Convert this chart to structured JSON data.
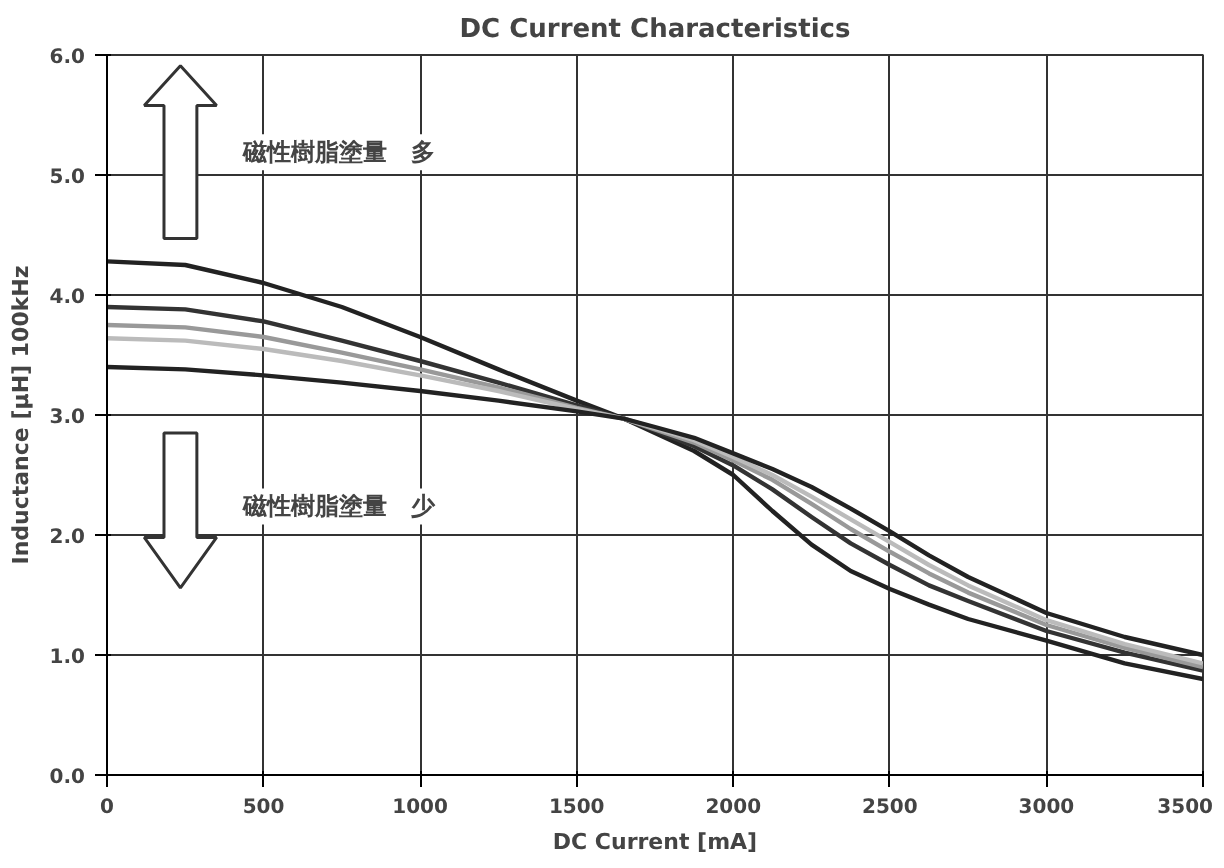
{
  "chart_data": {
    "type": "line",
    "title": "DC Current Characteristics",
    "xlabel": "DC Current [mA]",
    "ylabel": "Inductance [μH] 100kHz",
    "x": [
      0,
      250,
      500,
      750,
      1000,
      1250,
      1500,
      1650,
      1750,
      1875,
      2000,
      2125,
      2250,
      2375,
      2500,
      2625,
      2750,
      3000,
      3250,
      3500
    ],
    "series": [
      {
        "color": "#222222",
        "values": [
          4.28,
          4.25,
          4.1,
          3.9,
          3.65,
          3.38,
          3.12,
          2.97,
          2.85,
          2.7,
          2.5,
          2.2,
          1.92,
          1.7,
          1.55,
          1.42,
          1.3,
          1.12,
          0.93,
          0.8
        ]
      },
      {
        "color": "#333333",
        "values": [
          3.9,
          3.88,
          3.78,
          3.62,
          3.45,
          3.27,
          3.08,
          2.97,
          2.87,
          2.74,
          2.58,
          2.38,
          2.15,
          1.93,
          1.75,
          1.58,
          1.45,
          1.2,
          1.02,
          0.87
        ]
      },
      {
        "color": "#999999",
        "values": [
          3.75,
          3.73,
          3.65,
          3.52,
          3.38,
          3.23,
          3.06,
          2.97,
          2.88,
          2.77,
          2.62,
          2.46,
          2.26,
          2.05,
          1.86,
          1.68,
          1.52,
          1.25,
          1.06,
          0.9
        ]
      },
      {
        "color": "#bbbbbb",
        "values": [
          3.64,
          3.62,
          3.55,
          3.45,
          3.33,
          3.2,
          3.05,
          2.97,
          2.89,
          2.79,
          2.65,
          2.5,
          2.32,
          2.13,
          1.94,
          1.75,
          1.58,
          1.29,
          1.09,
          0.93
        ]
      },
      {
        "color": "#222222",
        "values": [
          3.4,
          3.38,
          3.33,
          3.27,
          3.2,
          3.12,
          3.03,
          2.97,
          2.9,
          2.81,
          2.68,
          2.55,
          2.4,
          2.22,
          2.03,
          1.83,
          1.65,
          1.35,
          1.15,
          1.0
        ]
      }
    ],
    "annotations": [
      "磁性樹脂塗量　多",
      "磁性樹脂塗量　少"
    ],
    "xlim": [
      0,
      3500
    ],
    "ylim": [
      0,
      6
    ],
    "xticks": [
      0,
      500,
      1000,
      1500,
      2000,
      2500,
      3000,
      3500
    ],
    "yticks": [
      {
        "value": 0,
        "label": "0.0"
      },
      {
        "value": 1,
        "label": "1.0"
      },
      {
        "value": 2,
        "label": "2.0"
      },
      {
        "value": 3,
        "label": "3.0"
      },
      {
        "value": 4,
        "label": "4.0"
      },
      {
        "value": 5,
        "label": "5.0"
      },
      {
        "value": 6,
        "label": "6.0"
      }
    ],
    "grid": true,
    "marker": "none",
    "line_style": "solid"
  }
}
